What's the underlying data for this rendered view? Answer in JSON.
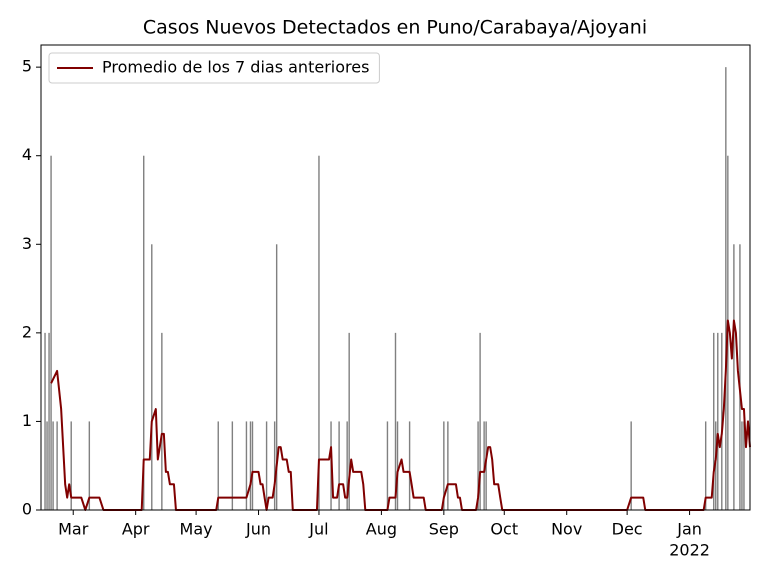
{
  "chart_data": {
    "type": "bar",
    "title": "Casos Nuevos Detectados en Puno/Carabaya/Ajoyani",
    "xlim": [
      0,
      352
    ],
    "ylim": [
      0,
      5.25
    ],
    "yticks": [
      0,
      1,
      2,
      3,
      4,
      5
    ],
    "xticks": [
      {
        "value": 16,
        "label": "Mar"
      },
      {
        "value": 47,
        "label": "Apr"
      },
      {
        "value": 77,
        "label": "May"
      },
      {
        "value": 108,
        "label": "Jun"
      },
      {
        "value": 138,
        "label": "Jul"
      },
      {
        "value": 169,
        "label": "Aug"
      },
      {
        "value": 200,
        "label": "Sep"
      },
      {
        "value": 230,
        "label": "Oct"
      },
      {
        "value": 261,
        "label": "Nov"
      },
      {
        "value": 291,
        "label": "Dec"
      },
      {
        "value": 322,
        "label": "Jan"
      }
    ],
    "year_label": "2022",
    "legend": "upper left",
    "series": [
      {
        "type": "bar",
        "color": "#808080",
        "x": [
          2,
          3,
          4,
          5,
          6,
          8,
          15,
          24,
          51,
          55,
          60,
          88,
          95,
          102,
          104,
          105,
          112,
          116,
          117,
          138,
          144,
          148,
          152,
          153,
          172,
          176,
          177,
          183,
          200,
          202,
          217,
          218,
          220,
          221,
          293,
          330,
          334,
          335,
          336,
          338,
          340,
          341,
          344,
          347,
          348,
          349
        ],
        "values": [
          2,
          1,
          2,
          4,
          1,
          1,
          1,
          1,
          4,
          3,
          2,
          1,
          1,
          1,
          1,
          1,
          1,
          1,
          3,
          4,
          1,
          1,
          1,
          2,
          1,
          2,
          1,
          1,
          1,
          1,
          1,
          2,
          1,
          1,
          1,
          1,
          2,
          1,
          2,
          2,
          5,
          4,
          3,
          3,
          1,
          1
        ]
      },
      {
        "type": "line",
        "name": "Promedio de los 7 dias anteriores",
        "color": "#800000",
        "x": [
          5,
          8,
          10,
          12,
          13,
          14,
          15,
          20,
          22,
          24,
          29,
          31,
          50,
          51,
          54,
          55,
          57,
          58,
          60,
          61,
          62,
          63,
          64,
          66,
          67,
          87,
          88,
          102,
          104,
          105,
          108,
          109,
          110,
          111,
          112,
          113,
          115,
          116,
          118,
          119,
          120,
          122,
          123,
          124,
          125,
          137,
          138,
          143,
          144,
          145,
          147,
          148,
          150,
          151,
          152,
          154,
          155,
          159,
          160,
          161,
          172,
          173,
          176,
          177,
          179,
          180,
          183,
          184,
          185,
          190,
          191,
          199,
          200,
          202,
          206,
          207,
          208,
          209,
          216,
          217,
          218,
          220,
          221,
          222,
          223,
          224,
          225,
          227,
          228,
          229,
          291,
          293,
          299,
          300,
          329,
          330,
          333,
          334,
          335,
          336,
          337,
          338,
          339,
          340,
          341,
          342,
          343,
          344,
          345,
          346,
          348,
          349,
          350,
          351,
          352
        ],
        "values": [
          1.43,
          1.57,
          1.14,
          0.29,
          0.14,
          0.29,
          0.14,
          0.14,
          0,
          0.14,
          0.14,
          0,
          0,
          0.57,
          0.57,
          1.0,
          1.14,
          0.57,
          0.86,
          0.86,
          0.43,
          0.43,
          0.29,
          0.29,
          0,
          0,
          0.14,
          0.14,
          0.29,
          0.43,
          0.43,
          0.29,
          0.29,
          0.14,
          0,
          0.14,
          0.14,
          0.29,
          0.71,
          0.71,
          0.57,
          0.57,
          0.43,
          0.43,
          0,
          0,
          0.57,
          0.57,
          0.71,
          0.14,
          0.14,
          0.29,
          0.29,
          0.14,
          0.14,
          0.57,
          0.43,
          0.43,
          0.29,
          0,
          0,
          0.14,
          0.14,
          0.43,
          0.57,
          0.43,
          0.43,
          0.29,
          0.14,
          0.14,
          0,
          0,
          0.14,
          0.29,
          0.29,
          0.14,
          0.14,
          0,
          0,
          0.14,
          0.43,
          0.43,
          0.57,
          0.71,
          0.71,
          0.57,
          0.29,
          0.29,
          0.14,
          0,
          0,
          0.14,
          0.14,
          0,
          0,
          0.14,
          0.14,
          0.43,
          0.57,
          0.86,
          0.71,
          0.86,
          1.14,
          1.57,
          2.14,
          2.0,
          1.71,
          2.14,
          2.0,
          1.57,
          1.14,
          1.14,
          0.71,
          1.0,
          0.71
        ]
      }
    ]
  }
}
